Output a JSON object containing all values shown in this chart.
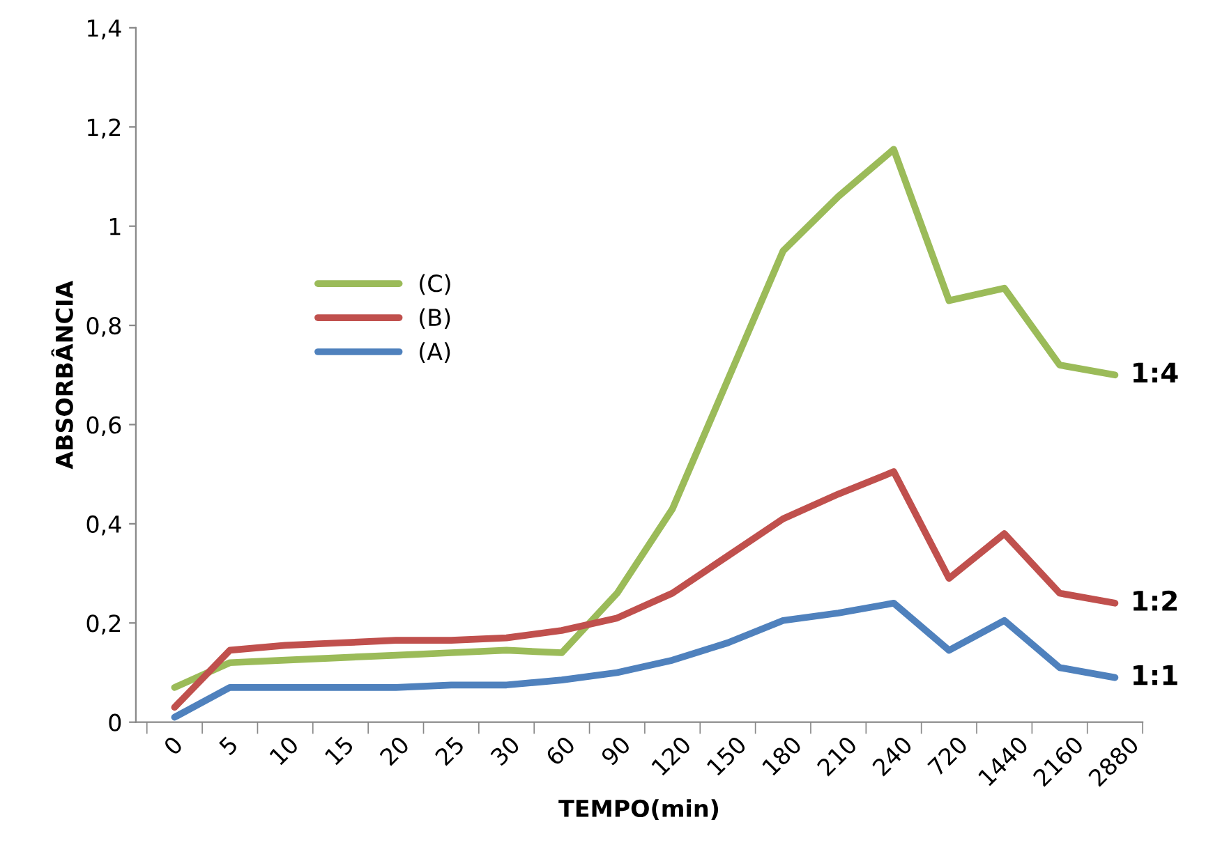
{
  "chart_data": {
    "type": "line",
    "xlabel": "TEMPO(min)",
    "ylabel": "ABSORBÂNCIA",
    "categories": [
      "0",
      "5",
      "10",
      "15",
      "20",
      "25",
      "30",
      "60",
      "90",
      "120",
      "150",
      "180",
      "210",
      "240",
      "720",
      "1440",
      "2160",
      "2880"
    ],
    "series": [
      {
        "name": "(C)",
        "color": "#9bbb59",
        "values": [
          0.07,
          0.12,
          0.125,
          0.13,
          0.135,
          0.14,
          0.145,
          0.14,
          0.26,
          0.43,
          0.69,
          0.95,
          1.06,
          1.155,
          0.85,
          0.875,
          0.72,
          0.7
        ]
      },
      {
        "name": "(B)",
        "color": "#c0504d",
        "values": [
          0.03,
          0.145,
          0.155,
          0.16,
          0.165,
          0.165,
          0.17,
          0.185,
          0.21,
          0.26,
          0.335,
          0.41,
          0.46,
          0.505,
          0.29,
          0.38,
          0.26,
          0.24
        ]
      },
      {
        "name": "(A)",
        "color": "#4f81bd",
        "values": [
          0.01,
          0.07,
          0.07,
          0.07,
          0.07,
          0.075,
          0.075,
          0.085,
          0.1,
          0.125,
          0.16,
          0.205,
          0.22,
          0.24,
          0.145,
          0.205,
          0.11,
          0.09
        ]
      }
    ],
    "ylim": [
      0,
      1.4
    ],
    "yticks": [
      {
        "value": 0,
        "label": "0"
      },
      {
        "value": 0.2,
        "label": "0,2"
      },
      {
        "value": 0.4,
        "label": "0,4"
      },
      {
        "value": 0.6,
        "label": "0,6"
      },
      {
        "value": 0.8,
        "label": "0,8"
      },
      {
        "value": 1,
        "label": "1"
      },
      {
        "value": 1.2,
        "label": "1,2"
      },
      {
        "value": 1.4,
        "label": "1,4"
      }
    ],
    "annotations": [
      {
        "text": "1:4",
        "x": "2880",
        "y": 0.7
      },
      {
        "text": "1:2",
        "x": "2880",
        "y": 0.24
      },
      {
        "text": "1:1",
        "x": "2880",
        "y": 0.09
      }
    ],
    "legend": "left",
    "grid": false,
    "marker": "none",
    "line_style": "solid"
  }
}
